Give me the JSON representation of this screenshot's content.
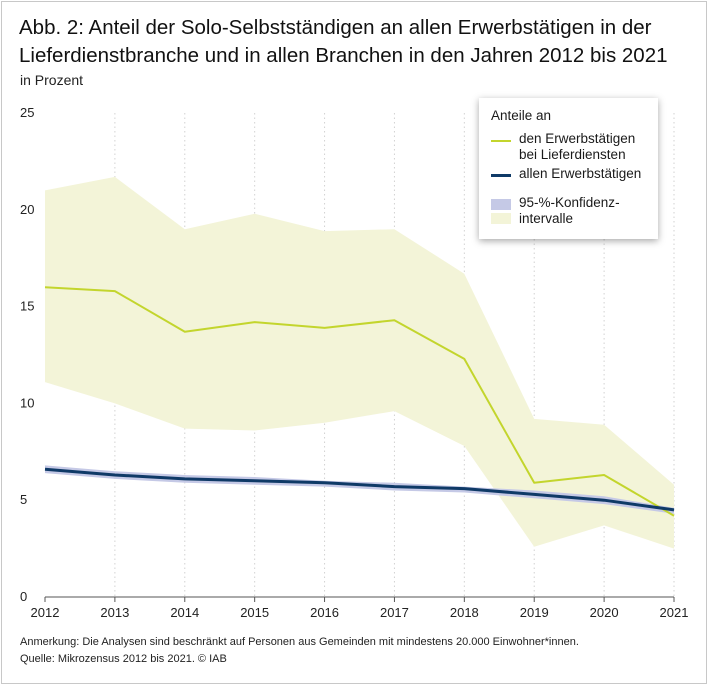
{
  "title": "Abb. 2: Anteil der Solo-Selbstständigen an allen Erwerbstätigen in der Lieferdienstbranche und in allen Branchen in den Jahren 2012 bis 2021",
  "subtitle": "in Prozent",
  "legend": {
    "title": "Anteile an",
    "items": [
      {
        "label": "den Erwerbstätigen bei Lieferdiensten"
      },
      {
        "label": "allen Erwerbstätigen"
      },
      {
        "label": "95-%-Konfidenz­intervalle"
      }
    ]
  },
  "footnote": {
    "note": "Anmerkung: Die Analysen sind beschränkt auf Personen aus Gemeinden mit mindestens 20.000 Einwohner*innen.",
    "source": "Quelle: Mikrozensus  2012 bis 2021. © IAB"
  },
  "colors": {
    "delivery_line": "#c3d52d",
    "delivery_band": "#f3f4d8",
    "all_line": "#0f3a67",
    "all_band": "#c5c9e6",
    "grid": "#d2d2d2",
    "axis": "#555555"
  },
  "chart_data": {
    "type": "line",
    "title": "Abb. 2: Anteil der Solo-Selbstständigen an allen Erwerbstätigen in der Lieferdienstbranche und in allen Branchen in den Jahren 2012 bis 2021",
    "xlabel": "",
    "ylabel": "in Prozent",
    "x": [
      "2012",
      "2013",
      "2014",
      "2015",
      "2016",
      "2017",
      "2018",
      "2019",
      "2020",
      "2021"
    ],
    "ylim": [
      0,
      25
    ],
    "yticks": [
      "0",
      "5",
      "10",
      "15",
      "20",
      "25"
    ],
    "grid": "vertical dotted",
    "legend_position": "top-right",
    "series": [
      {
        "name": "den Erwerbstätigen bei Lieferdiensten",
        "values": [
          16.0,
          15.8,
          13.7,
          14.2,
          13.9,
          14.3,
          12.3,
          5.9,
          6.3,
          4.2
        ],
        "ci_upper": [
          21.0,
          21.7,
          19.0,
          19.8,
          18.9,
          19.0,
          16.7,
          9.2,
          8.9,
          5.8
        ],
        "ci_lower": [
          11.1,
          10.0,
          8.7,
          8.6,
          9.0,
          9.6,
          7.8,
          2.6,
          3.7,
          2.5
        ]
      },
      {
        "name": "allen Erwerbstätigen",
        "values": [
          6.6,
          6.3,
          6.1,
          6.0,
          5.9,
          5.7,
          5.6,
          5.3,
          5.0,
          4.5
        ],
        "ci_upper": [
          6.8,
          6.5,
          6.3,
          6.2,
          6.0,
          5.9,
          5.7,
          5.5,
          5.2,
          4.6
        ],
        "ci_lower": [
          6.4,
          6.1,
          5.9,
          5.8,
          5.7,
          5.5,
          5.4,
          5.1,
          4.8,
          4.3
        ]
      }
    ]
  }
}
